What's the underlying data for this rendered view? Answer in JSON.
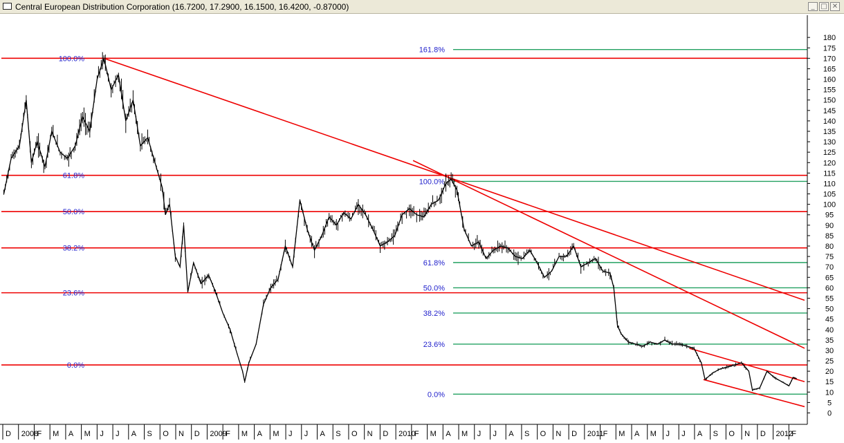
{
  "window": {
    "title": "Central European Distribution Corporation",
    "ohlc": "(16.7200, 17.2900, 16.1500, 16.4200, -0.87000)",
    "minimize_icon": "minimize-icon",
    "maximize_icon": "maximize-icon",
    "close_icon": "close-icon"
  },
  "colors": {
    "price": "#000000",
    "fib_primary": "#ee0000",
    "fib_secondary": "#22a060",
    "fib_label": "#2222cc",
    "trend": "#ee0000"
  },
  "chart_data": {
    "type": "line",
    "title": "Central European Distribution Corporation",
    "ylim": [
      -5,
      185
    ],
    "y_ticks": [
      0,
      5,
      10,
      15,
      20,
      25,
      30,
      35,
      40,
      45,
      50,
      55,
      60,
      65,
      70,
      75,
      80,
      85,
      90,
      95,
      100,
      105,
      110,
      115,
      120,
      125,
      130,
      135,
      140,
      145,
      150,
      155,
      160,
      165,
      170,
      175,
      180
    ],
    "x_labels": [
      "D",
      "2008",
      "F",
      "M",
      "A",
      "M",
      "J",
      "J",
      "A",
      "S",
      "O",
      "N",
      "D",
      "2009",
      "F",
      "M",
      "A",
      "M",
      "J",
      "J",
      "A",
      "S",
      "O",
      "N",
      "D",
      "2010",
      "F",
      "M",
      "A",
      "M",
      "J",
      "J",
      "A",
      "S",
      "O",
      "N",
      "D",
      "2011",
      "F",
      "M",
      "A",
      "M",
      "J",
      "J",
      "A",
      "S",
      "O",
      "N",
      "D",
      "2012",
      "F"
    ],
    "series": [
      {
        "values": [
          {
            "x": "2007-12-03",
            "y": 105
          },
          {
            "x": "2007-12-17",
            "y": 122
          },
          {
            "x": "2008-01-02",
            "y": 128
          },
          {
            "x": "2008-01-15",
            "y": 150
          },
          {
            "x": "2008-01-25",
            "y": 120
          },
          {
            "x": "2008-02-05",
            "y": 130
          },
          {
            "x": "2008-02-20",
            "y": 118
          },
          {
            "x": "2008-03-04",
            "y": 135
          },
          {
            "x": "2008-03-20",
            "y": 125
          },
          {
            "x": "2008-04-03",
            "y": 122
          },
          {
            "x": "2008-04-18",
            "y": 128
          },
          {
            "x": "2008-05-02",
            "y": 142
          },
          {
            "x": "2008-05-16",
            "y": 135
          },
          {
            "x": "2008-05-30",
            "y": 160
          },
          {
            "x": "2008-06-12",
            "y": 170
          },
          {
            "x": "2008-06-26",
            "y": 155
          },
          {
            "x": "2008-07-10",
            "y": 162
          },
          {
            "x": "2008-07-24",
            "y": 140
          },
          {
            "x": "2008-08-07",
            "y": 150
          },
          {
            "x": "2008-08-21",
            "y": 128
          },
          {
            "x": "2008-09-04",
            "y": 132
          },
          {
            "x": "2008-09-18",
            "y": 120
          },
          {
            "x": "2008-10-02",
            "y": 108
          },
          {
            "x": "2008-10-08",
            "y": 95
          },
          {
            "x": "2008-10-16",
            "y": 100
          },
          {
            "x": "2008-10-27",
            "y": 75
          },
          {
            "x": "2008-11-05",
            "y": 70
          },
          {
            "x": "2008-11-12",
            "y": 90
          },
          {
            "x": "2008-11-20",
            "y": 58
          },
          {
            "x": "2008-12-01",
            "y": 72
          },
          {
            "x": "2008-12-15",
            "y": 62
          },
          {
            "x": "2008-12-30",
            "y": 66
          },
          {
            "x": "2009-01-12",
            "y": 58
          },
          {
            "x": "2009-01-26",
            "y": 48
          },
          {
            "x": "2009-02-09",
            "y": 40
          },
          {
            "x": "2009-02-23",
            "y": 28
          },
          {
            "x": "2009-03-05",
            "y": 20
          },
          {
            "x": "2009-03-09",
            "y": 15
          },
          {
            "x": "2009-03-17",
            "y": 24
          },
          {
            "x": "2009-03-31",
            "y": 33
          },
          {
            "x": "2009-04-14",
            "y": 52
          },
          {
            "x": "2009-04-28",
            "y": 60
          },
          {
            "x": "2009-05-12",
            "y": 64
          },
          {
            "x": "2009-05-26",
            "y": 80
          },
          {
            "x": "2009-06-09",
            "y": 70
          },
          {
            "x": "2009-06-23",
            "y": 102
          },
          {
            "x": "2009-07-07",
            "y": 88
          },
          {
            "x": "2009-07-21",
            "y": 78
          },
          {
            "x": "2009-08-04",
            "y": 85
          },
          {
            "x": "2009-08-18",
            "y": 94
          },
          {
            "x": "2009-09-01",
            "y": 90
          },
          {
            "x": "2009-09-15",
            "y": 96
          },
          {
            "x": "2009-09-29",
            "y": 93
          },
          {
            "x": "2009-10-13",
            "y": 100
          },
          {
            "x": "2009-10-27",
            "y": 95
          },
          {
            "x": "2009-11-10",
            "y": 88
          },
          {
            "x": "2009-11-24",
            "y": 80
          },
          {
            "x": "2009-12-08",
            "y": 82
          },
          {
            "x": "2009-12-22",
            "y": 85
          },
          {
            "x": "2010-01-05",
            "y": 95
          },
          {
            "x": "2010-01-19",
            "y": 98
          },
          {
            "x": "2010-02-02",
            "y": 95
          },
          {
            "x": "2010-02-16",
            "y": 94
          },
          {
            "x": "2010-03-02",
            "y": 100
          },
          {
            "x": "2010-03-16",
            "y": 102
          },
          {
            "x": "2010-03-30",
            "y": 110
          },
          {
            "x": "2010-04-09",
            "y": 112
          },
          {
            "x": "2010-04-20",
            "y": 107
          },
          {
            "x": "2010-05-04",
            "y": 88
          },
          {
            "x": "2010-05-18",
            "y": 80
          },
          {
            "x": "2010-06-01",
            "y": 82
          },
          {
            "x": "2010-06-15",
            "y": 74
          },
          {
            "x": "2010-06-29",
            "y": 78
          },
          {
            "x": "2010-07-13",
            "y": 80
          },
          {
            "x": "2010-07-27",
            "y": 79
          },
          {
            "x": "2010-08-10",
            "y": 75
          },
          {
            "x": "2010-08-24",
            "y": 74
          },
          {
            "x": "2010-09-07",
            "y": 78
          },
          {
            "x": "2010-09-21",
            "y": 72
          },
          {
            "x": "2010-10-05",
            "y": 65
          },
          {
            "x": "2010-10-19",
            "y": 68
          },
          {
            "x": "2010-11-02",
            "y": 75
          },
          {
            "x": "2010-11-16",
            "y": 75
          },
          {
            "x": "2010-11-30",
            "y": 80
          },
          {
            "x": "2010-12-14",
            "y": 70
          },
          {
            "x": "2010-12-28",
            "y": 72
          },
          {
            "x": "2011-01-11",
            "y": 74
          },
          {
            "x": "2011-01-25",
            "y": 68
          },
          {
            "x": "2011-02-08",
            "y": 67
          },
          {
            "x": "2011-02-15",
            "y": 60
          },
          {
            "x": "2011-02-22",
            "y": 42
          },
          {
            "x": "2011-03-01",
            "y": 38
          },
          {
            "x": "2011-03-15",
            "y": 34
          },
          {
            "x": "2011-03-29",
            "y": 33
          },
          {
            "x": "2011-04-12",
            "y": 32
          },
          {
            "x": "2011-04-26",
            "y": 34
          },
          {
            "x": "2011-05-10",
            "y": 33
          },
          {
            "x": "2011-05-24",
            "y": 35
          },
          {
            "x": "2011-06-07",
            "y": 33
          },
          {
            "x": "2011-06-21",
            "y": 33
          },
          {
            "x": "2011-07-05",
            "y": 32
          },
          {
            "x": "2011-07-19",
            "y": 31
          },
          {
            "x": "2011-08-02",
            "y": 24
          },
          {
            "x": "2011-08-09",
            "y": 16
          },
          {
            "x": "2011-08-23",
            "y": 19
          },
          {
            "x": "2011-09-06",
            "y": 21
          },
          {
            "x": "2011-09-20",
            "y": 22
          },
          {
            "x": "2011-10-04",
            "y": 23
          },
          {
            "x": "2011-10-18",
            "y": 24
          },
          {
            "x": "2011-11-01",
            "y": 20
          },
          {
            "x": "2011-11-08",
            "y": 11
          },
          {
            "x": "2011-11-22",
            "y": 12
          },
          {
            "x": "2011-12-06",
            "y": 20
          },
          {
            "x": "2011-12-20",
            "y": 17
          },
          {
            "x": "2012-01-03",
            "y": 15
          },
          {
            "x": "2012-01-17",
            "y": 13
          },
          {
            "x": "2012-01-25",
            "y": 17
          },
          {
            "x": "2012-02-01",
            "y": 16.42
          }
        ]
      }
    ],
    "fib_primary": {
      "levels": [
        {
          "label": "100.0%",
          "y": 170
        },
        {
          "label": "61.8%",
          "y": 113.9
        },
        {
          "label": "50.0%",
          "y": 96.5
        },
        {
          "label": "38.2%",
          "y": 79.1
        },
        {
          "label": "23.6%",
          "y": 57.6
        },
        {
          "label": "0.0%",
          "y": 23
        }
      ]
    },
    "fib_secondary": {
      "levels": [
        {
          "label": "161.8%",
          "y": 174.2
        },
        {
          "label": "100.0%",
          "y": 111
        },
        {
          "label": "61.8%",
          "y": 72.1
        },
        {
          "label": "50.0%",
          "y": 60
        },
        {
          "label": "38.2%",
          "y": 47.9
        },
        {
          "label": "23.6%",
          "y": 33
        },
        {
          "label": "0.0%",
          "y": 9
        }
      ]
    },
    "trendlines": [
      {
        "from": {
          "x": "2008-06-12",
          "y": 170
        },
        "to": {
          "x": "2010-04-09",
          "y": 112.5
        }
      },
      {
        "from": {
          "x": "2010-04-09",
          "y": 112.5
        },
        "to": {
          "x": "2012-02-16",
          "y": 54
        }
      },
      {
        "from": {
          "x": "2010-01-26",
          "y": 121
        },
        "to": {
          "x": "2012-02-16",
          "y": 31
        }
      },
      {
        "from": {
          "x": "2011-07-10",
          "y": 31
        },
        "to": {
          "x": "2012-02-16",
          "y": 15
        }
      },
      {
        "from": {
          "x": "2011-08-06",
          "y": 16
        },
        "to": {
          "x": "2012-02-16",
          "y": 3
        }
      }
    ]
  }
}
